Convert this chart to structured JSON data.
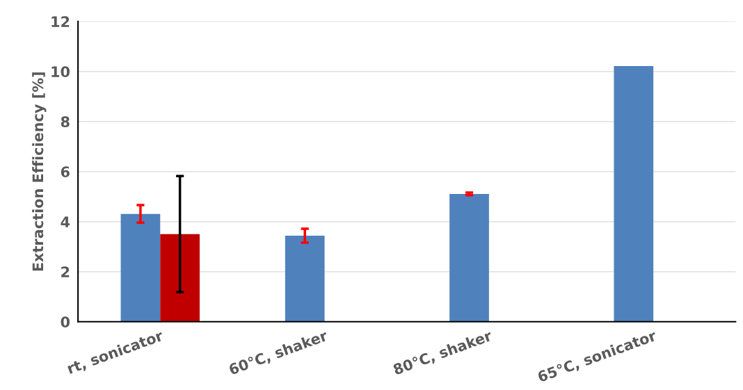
{
  "chart_data": {
    "type": "bar",
    "ylabel": "Extraction Efficiency [%]",
    "categories": [
      "rt, sonicator",
      "60°C, shaker",
      "80°C, shaker",
      "65°C, sonicator"
    ],
    "series": [
      {
        "color": "#4f81bd",
        "values": [
          4.31,
          3.44,
          5.11,
          10.22
        ],
        "errors": [
          0.35,
          0.28,
          0.05,
          null
        ]
      },
      {
        "color": "#c00000",
        "values": [
          3.5,
          null,
          null,
          null
        ],
        "errors": [
          2.32,
          null,
          null,
          null
        ]
      }
    ],
    "ylim": [
      0,
      12
    ],
    "yticks": [
      0,
      2,
      4,
      6,
      8,
      10,
      12
    ],
    "grid": "y",
    "legend": false
  }
}
